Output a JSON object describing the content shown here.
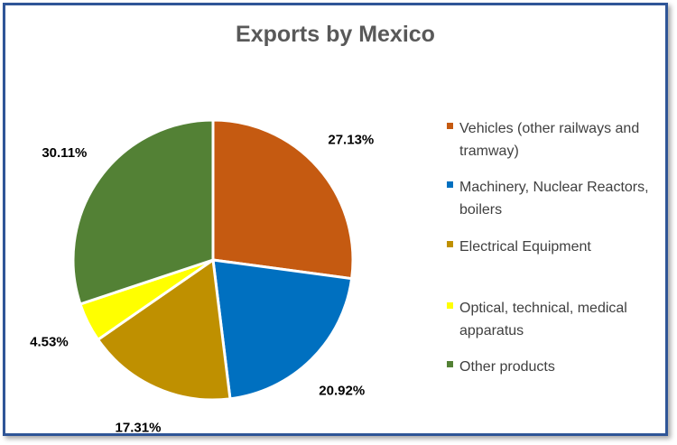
{
  "chart_data": {
    "type": "pie",
    "title": "Exports by Mexico",
    "categories": [
      "Vehicles (other railways and tramway)",
      "Machinery, Nuclear Reactors, boilers",
      "Electrical Equipment",
      "Optical, technical, medical apparatus",
      "Other products"
    ],
    "values": [
      27.13,
      20.92,
      17.31,
      4.53,
      30.11
    ],
    "data_labels": [
      "27.13%",
      "20.92%",
      "17.31%",
      "4.53%",
      "30.11%"
    ],
    "colors": [
      "#c55a11",
      "#0070c0",
      "#bf9000",
      "#ffff00",
      "#538135"
    ],
    "legend_position": "right"
  }
}
